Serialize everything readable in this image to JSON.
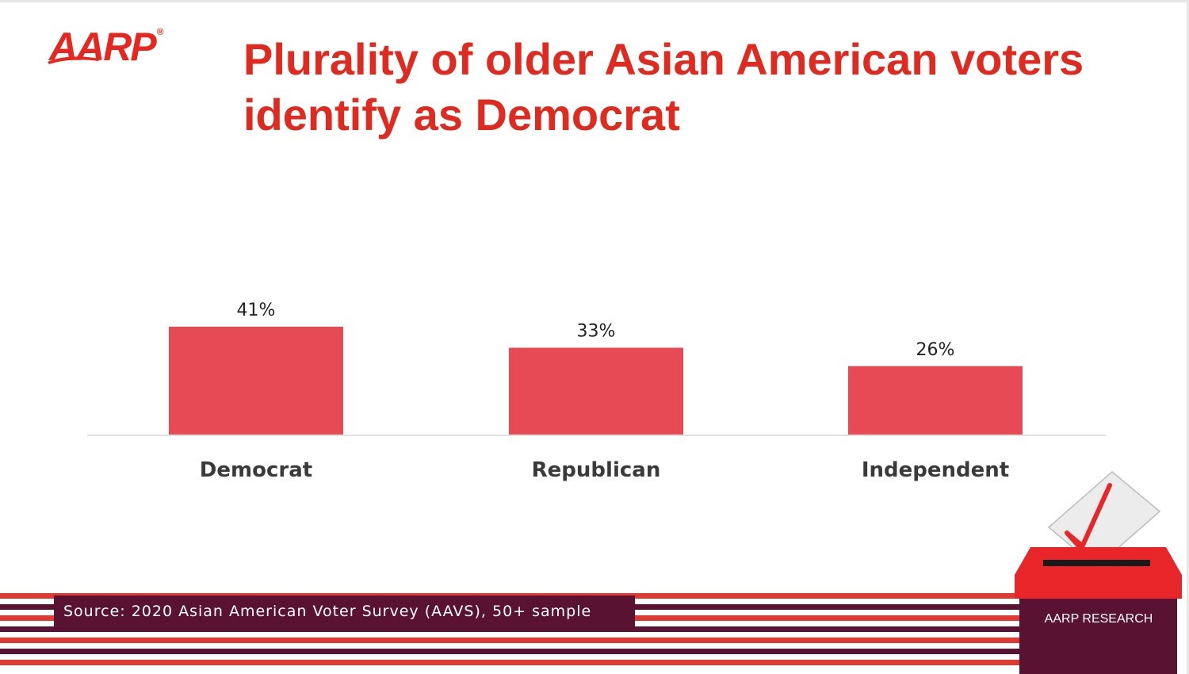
{
  "logo": {
    "text": "AARP",
    "registered": "®"
  },
  "title": "Plurality of older Asian American voters identify as Democrat",
  "source": "Source: 2020 Asian American Voter Survey (AAVS), 50+ sample",
  "badge": "AARP RESEARCH",
  "colors": {
    "title": "#e0291f",
    "bar": "#e64b55",
    "stripe_red": "#e13a32",
    "stripe_maroon": "#5a1232",
    "ballot_red": "#e8262a"
  },
  "icons": [
    "ballot-box-icon",
    "checkmark-icon"
  ],
  "chart_data": {
    "type": "bar",
    "categories": [
      "Democrat",
      "Republican",
      "Independent"
    ],
    "values": [
      41,
      33,
      26
    ],
    "value_labels": [
      "41%",
      "33%",
      "26%"
    ],
    "title": "Plurality of older Asian American voters identify as Democrat",
    "xlabel": "",
    "ylabel": "",
    "ylim": [
      0,
      41
    ],
    "grid": false,
    "legend": "none"
  }
}
